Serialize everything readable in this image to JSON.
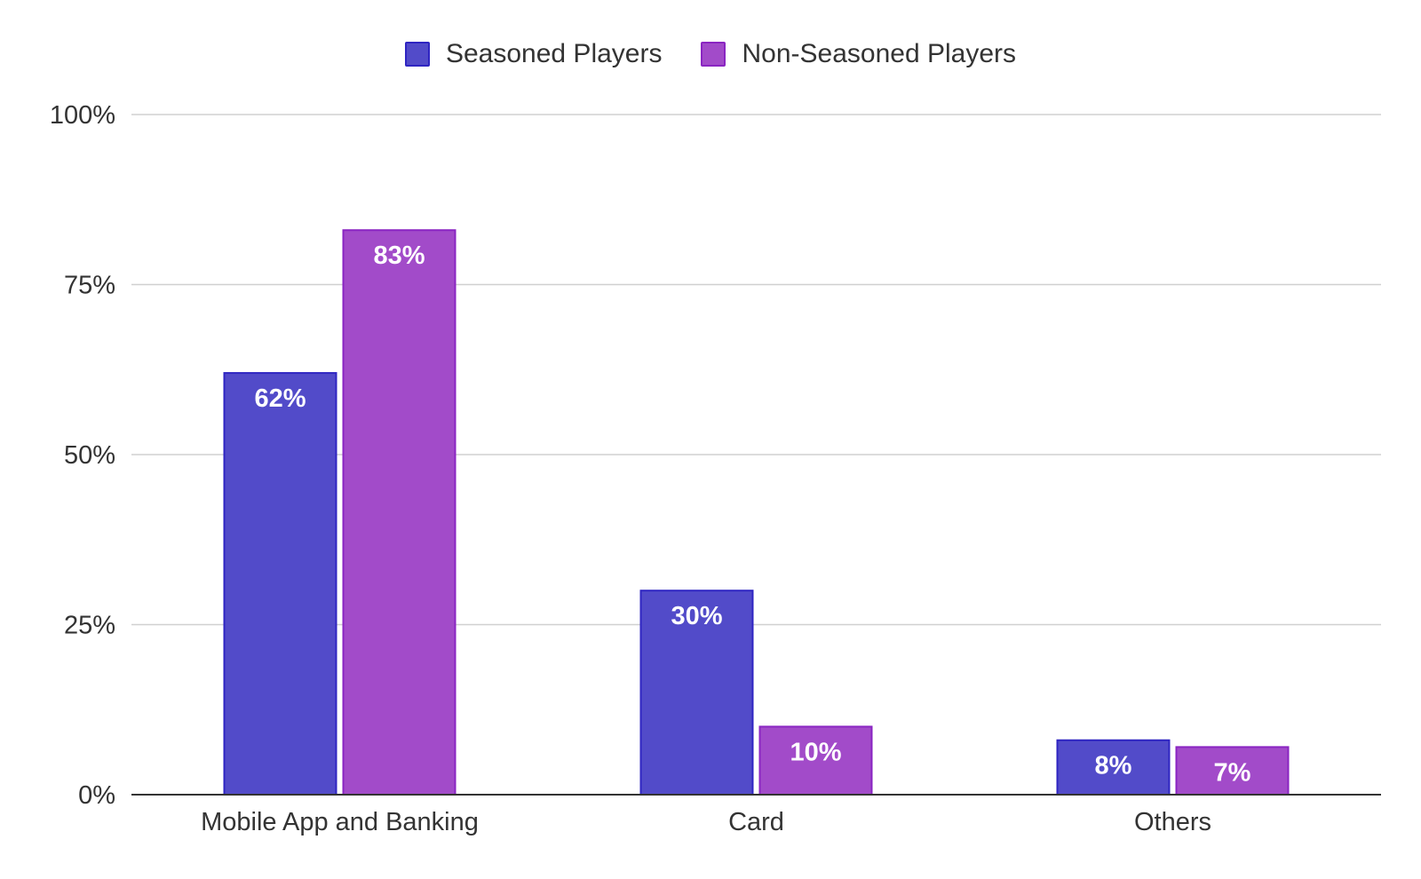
{
  "chart_data": {
    "type": "bar",
    "title": "",
    "xlabel": "",
    "ylabel": "",
    "categories": [
      "Mobile App and Banking",
      "Card",
      "Others"
    ],
    "series": [
      {
        "name": "Seasoned Players",
        "values": [
          62,
          30,
          8
        ],
        "labels": [
          "62%",
          "30%",
          "8%"
        ],
        "color": "#524bc9",
        "edge_color": "#2f25c2"
      },
      {
        "name": "Non-Seasoned Players",
        "values": [
          83,
          10,
          7
        ],
        "labels": [
          "83%",
          "10%",
          "7%"
        ],
        "color": "#a24bc9",
        "edge_color": "#8a25c2"
      }
    ],
    "ylim": [
      0,
      100
    ],
    "yticks": [
      0,
      25,
      50,
      75,
      100
    ],
    "ytick_labels": [
      "0%",
      "25%",
      "50%",
      "75%",
      "100%"
    ],
    "grid": true,
    "legend_position": "top-center",
    "data_label_color": "#ffffff"
  }
}
